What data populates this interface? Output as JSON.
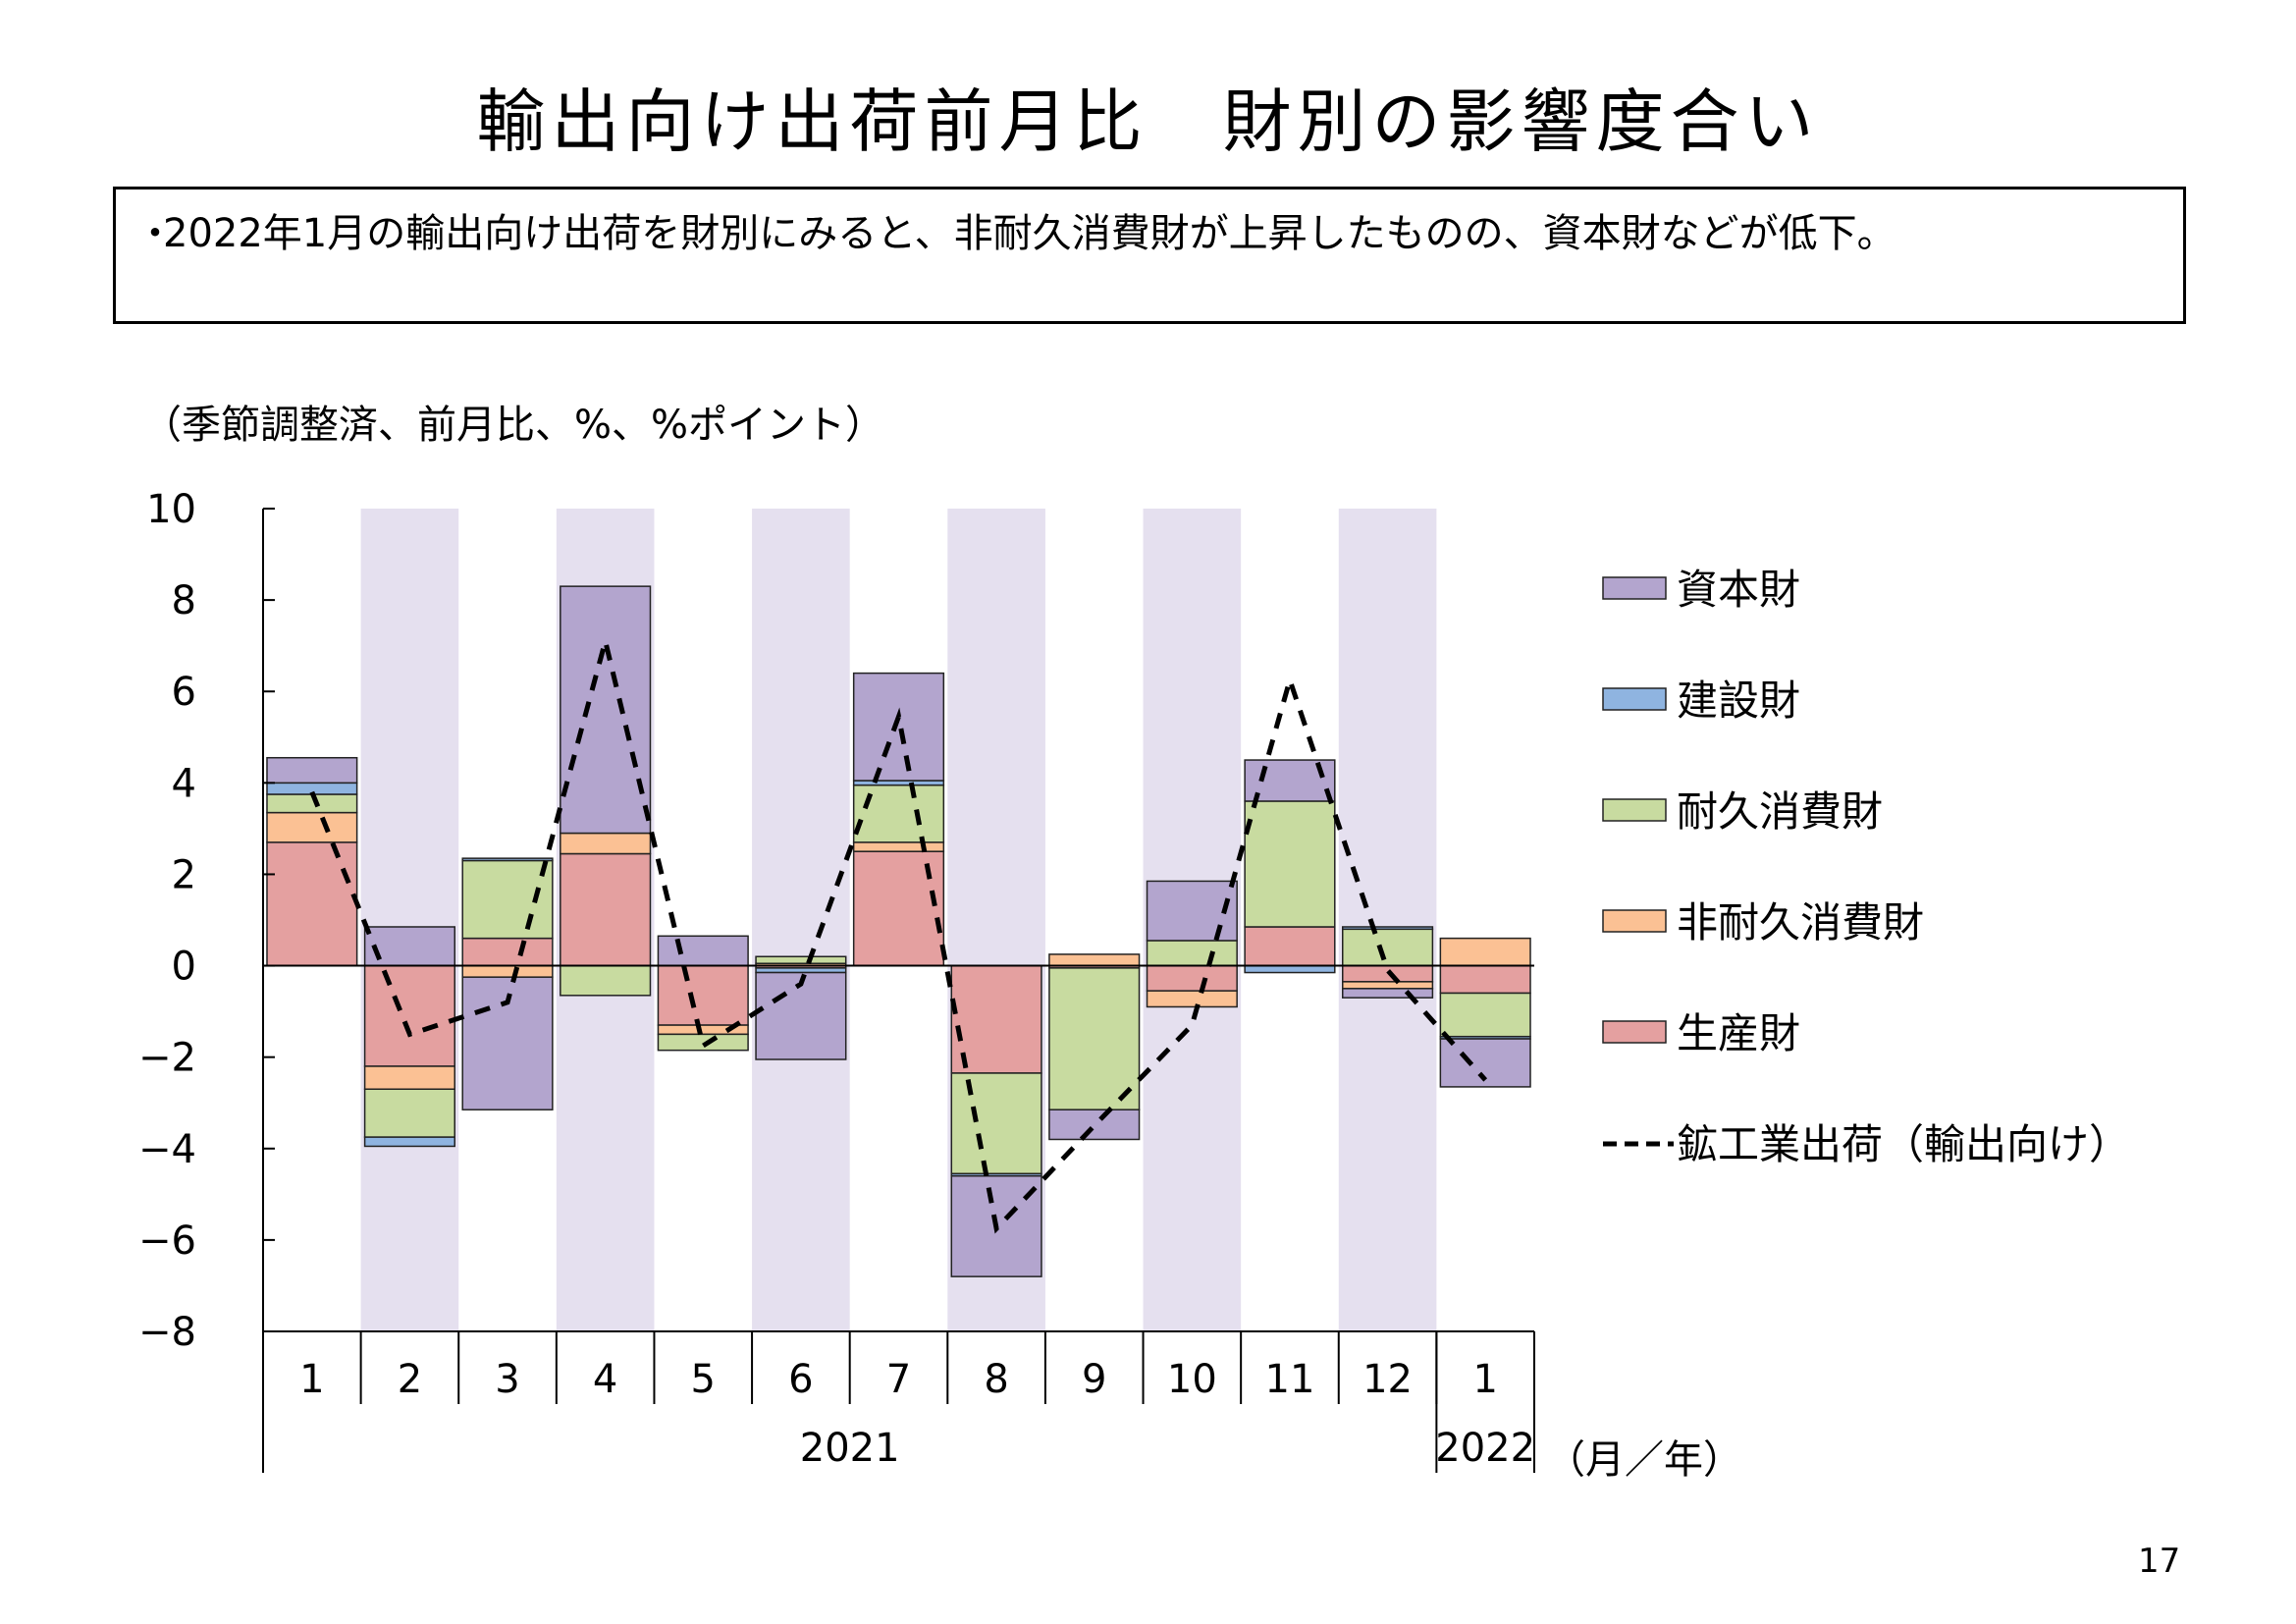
{
  "title": "輸出向け出荷前月比　財別の影響度合い",
  "summary": {
    "bullet": "・",
    "text": "2022年1月の輸出向け出荷を財別にみると、非耐久消費財が上昇したものの、資本財などが低下。"
  },
  "unit_label": "（季節調整済、前月比、%、%ポイント）",
  "page_number": "17",
  "colors": {
    "capital": "#B3A5CE",
    "construction": "#8FB4E0",
    "durable": "#C8DBA0",
    "nondurable": "#FBC194",
    "producer": "#E4A0A0",
    "shade": "#E5E0EF"
  },
  "chart_data": {
    "type": "bar",
    "stacked": true,
    "categories": [
      "1",
      "2",
      "3",
      "4",
      "5",
      "6",
      "7",
      "8",
      "9",
      "10",
      "11",
      "12",
      "1"
    ],
    "year_labels": [
      "2021",
      "2022"
    ],
    "year_spans": [
      [
        0,
        11
      ],
      [
        12,
        12
      ]
    ],
    "x_unit_label": "（月／年）",
    "ylim": [
      -8,
      10
    ],
    "yticks": [
      10,
      8,
      6,
      4,
      2,
      0,
      -2,
      -4,
      -6,
      -8
    ],
    "shaded_categories": [
      1,
      3,
      5,
      7,
      9,
      11
    ],
    "series": [
      {
        "name": "生産財",
        "key": "producer",
        "values": [
          2.7,
          -2.2,
          0.6,
          2.45,
          -1.3,
          -0.05,
          2.5,
          -2.35,
          -0.05,
          -0.55,
          0.85,
          -0.35,
          -0.6
        ]
      },
      {
        "name": "非耐久消費財",
        "key": "nondurable",
        "values": [
          0.65,
          -0.5,
          -0.25,
          0.45,
          -0.2,
          0.05,
          0.2,
          0.0,
          0.25,
          -0.35,
          0.0,
          -0.15,
          0.6
        ]
      },
      {
        "name": "耐久消費財",
        "key": "durable",
        "values": [
          0.4,
          -1.05,
          1.7,
          -0.65,
          -0.35,
          0.15,
          1.25,
          -2.2,
          -3.1,
          0.55,
          2.75,
          0.8,
          -0.95
        ]
      },
      {
        "name": "建設財",
        "key": "construction",
        "values": [
          0.25,
          -0.2,
          0.05,
          0.0,
          0.0,
          -0.1,
          0.1,
          -0.05,
          0.0,
          0.0,
          -0.15,
          0.05,
          -0.05
        ]
      },
      {
        "name": "資本財",
        "key": "capital",
        "values": [
          0.55,
          0.85,
          -2.9,
          5.4,
          0.65,
          -1.9,
          2.35,
          -2.2,
          -0.65,
          1.3,
          0.9,
          -0.2,
          -1.05
        ]
      }
    ],
    "legend_order": [
      "資本財",
      "建設財",
      "耐久消費財",
      "非耐久消費財",
      "生産財",
      "鉱工業出荷（輸出向け）"
    ],
    "line": {
      "name": "鉱工業出荷（輸出向け）",
      "style": "dashed",
      "values": [
        3.8,
        -1.5,
        -0.8,
        7.1,
        -1.75,
        -0.4,
        5.45,
        -5.75,
        -3.5,
        -1.3,
        6.25,
        -0.1,
        -2.5
      ]
    },
    "legend_position": "right"
  }
}
